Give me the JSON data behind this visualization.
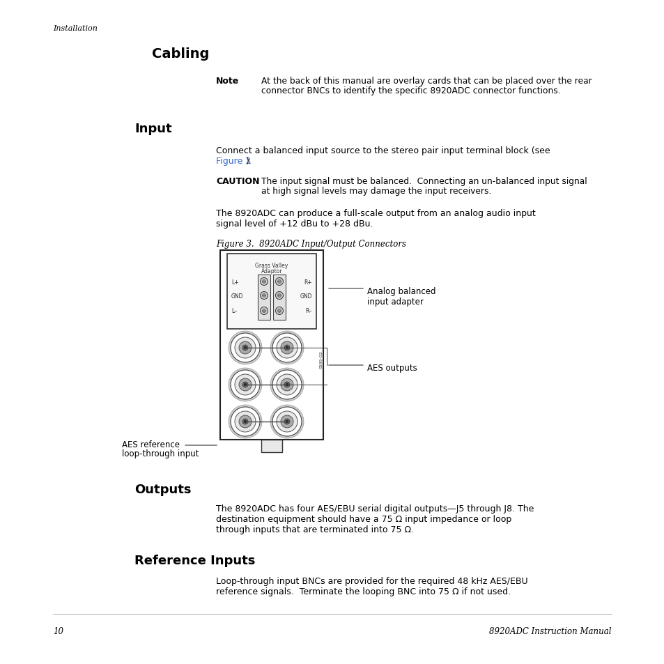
{
  "background_color": "#ffffff",
  "page_number": "10",
  "manual_title": "8920ADC Instruction Manual",
  "header_italic": "Installation",
  "section_cabling": "Cabling",
  "note_label": "Note",
  "note_line1": "At the back of this manual are overlay cards that can be placed over the rear",
  "note_line2": "connector BNCs to identify the specific 8920ADC connector functions.",
  "section_input": "Input",
  "input_line1": "Connect a balanced input source to the stereo pair input terminal block (see",
  "input_link": "Figure 3",
  "input_link_suffix": ").",
  "caution_label": "CAUTION",
  "caution_line1": "The input signal must be balanced.  Connecting an un-balanced input signal",
  "caution_line2": "at high signal levels may damage the input receivers.",
  "input_p2_line1": "The 8920ADC can produce a full-scale output from an analog audio input",
  "input_p2_line2": "signal level of +12 dBu to +28 dBu.",
  "figure_caption": "Figure 3.  8920ADC Input/Output Connectors",
  "grass_valley_line1": "Grass Valley",
  "grass_valley_line2": "Adaptor",
  "label_L_plus": "L+",
  "label_GND_left": "GND",
  "label_L_minus": "L–",
  "label_R_plus": "R+",
  "label_GND_right": "GND",
  "label_R_minus": "R–",
  "serial_number": "0595-02",
  "analog_balanced_label_1": "Analog balanced",
  "analog_balanced_label_2": "input adapter",
  "aes_outputs_label": "AES outputs",
  "aes_ref_label_1": "AES reference",
  "aes_ref_label_2": "loop-through input",
  "section_outputs": "Outputs",
  "outputs_line1": "The 8920ADC has four AES/EBU serial digital outputs—J5 through J8. The",
  "outputs_line2": "destination equipment should have a 75 Ω input impedance or loop",
  "outputs_line3": "through inputs that are terminated into 75 Ω.",
  "section_reference": "Reference Inputs",
  "reference_line1": "Loop-through input BNCs are provided for the required 48 kHz AES/EBU",
  "reference_line2": "reference signals.  Terminate the looping BNC into 75 Ω if not used.",
  "link_color": "#3366cc",
  "text_color": "#000000",
  "gray_color": "#555555"
}
